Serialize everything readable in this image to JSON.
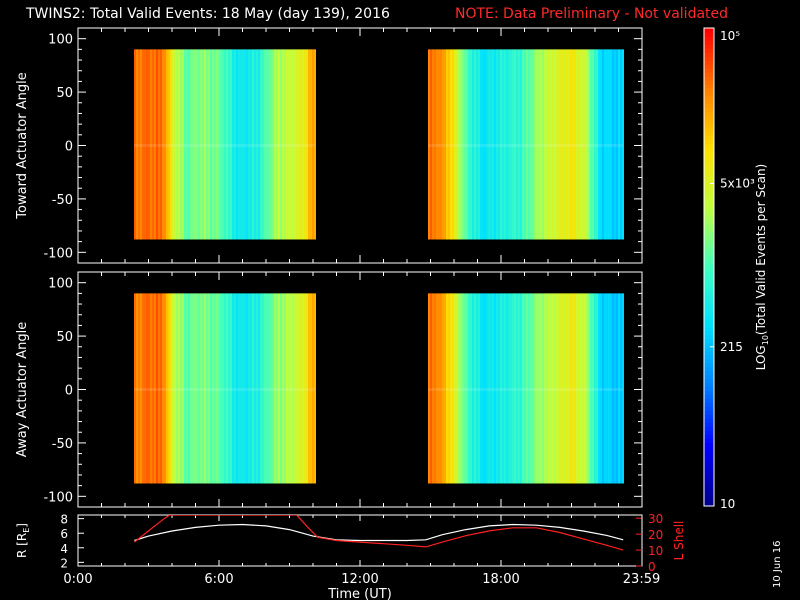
{
  "header": {
    "title": "TWINS2: Total Valid Events: 18 May (day 139), 2016",
    "note": "NOTE: Data Preliminary - Not validated"
  },
  "colors": {
    "background": "#000000",
    "axes": "#ffffff",
    "note": "#ff2a2a",
    "r_line": "#ffffff",
    "l_shell_line": "#ff2020"
  },
  "date_stamp": "10 Jun 16",
  "colorbar": {
    "label": "LOG10(Total Valid Events per Scan)",
    "label_prefix": "LOG",
    "label_sub": "10",
    "label_suffix": "(Total Valid Events per Scan)",
    "tick_labels": [
      "10",
      "215",
      "5x10³",
      "10⁵"
    ],
    "tick_values": [
      10,
      215,
      5000,
      100000
    ],
    "range": [
      10,
      100000
    ],
    "scale": "log",
    "colormap": [
      "#00008c",
      "#0000ff",
      "#0080ff",
      "#00e0ff",
      "#40ffc0",
      "#c0ff40",
      "#ffe000",
      "#ff8000",
      "#ff0000"
    ]
  },
  "chart_data": [
    {
      "type": "heatmap",
      "panel": "toward",
      "ylabel": "Toward Actuator Angle",
      "ylim": [
        -110,
        110
      ],
      "yticks": [
        -100,
        -50,
        0,
        50,
        100
      ],
      "xlim": [
        0,
        24
      ],
      "angle_range": [
        -88,
        90
      ],
      "data_intervals": [
        [
          2.4,
          10.1
        ],
        [
          14.9,
          23.2
        ]
      ],
      "profile_hours": [
        2.4,
        2.6,
        3.0,
        3.6,
        4.0,
        4.6,
        5.2,
        6.0,
        6.8,
        7.6,
        8.4,
        9.0,
        9.6,
        9.8,
        10.1,
        14.9,
        15.2,
        15.8,
        16.5,
        17.2,
        18.0,
        18.8,
        19.6,
        20.4,
        21.0,
        21.6,
        22.2,
        23.2
      ],
      "profile_log_counts": [
        4.5,
        4.55,
        4.6,
        4.55,
        3.7,
        3.1,
        3.3,
        3.15,
        2.6,
        2.75,
        3.4,
        3.55,
        3.8,
        4.2,
        4.3,
        4.5,
        4.55,
        4.1,
        3.0,
        2.55,
        2.75,
        2.9,
        3.4,
        3.7,
        3.9,
        3.5,
        2.5,
        2.4
      ]
    },
    {
      "type": "heatmap",
      "panel": "away",
      "ylabel": "Away Actuator Angle",
      "ylim": [
        -110,
        110
      ],
      "yticks": [
        -100,
        -50,
        0,
        50,
        100
      ],
      "xlim": [
        0,
        24
      ],
      "angle_range": [
        -88,
        90
      ],
      "data_intervals": [
        [
          2.4,
          10.1
        ],
        [
          14.9,
          23.2
        ]
      ],
      "profile_hours": [
        2.4,
        2.6,
        3.0,
        3.6,
        4.0,
        4.6,
        5.2,
        6.0,
        6.8,
        7.6,
        8.4,
        9.0,
        9.6,
        9.8,
        10.1,
        14.9,
        15.2,
        15.8,
        16.5,
        17.2,
        18.0,
        18.8,
        19.6,
        20.4,
        21.0,
        21.6,
        22.2,
        23.2
      ],
      "profile_log_counts": [
        4.45,
        4.5,
        4.6,
        4.55,
        3.6,
        3.1,
        3.25,
        3.1,
        2.6,
        2.75,
        3.3,
        3.45,
        3.75,
        4.15,
        4.25,
        4.5,
        4.55,
        4.0,
        3.0,
        2.55,
        2.7,
        2.9,
        3.35,
        3.6,
        3.85,
        3.45,
        2.45,
        2.35
      ]
    },
    {
      "type": "line",
      "panel": "ephemeris",
      "xlabel": "Time (UT)",
      "x_tick_labels": [
        "0:00",
        "6:00",
        "12:00",
        "18:00",
        "23:59"
      ],
      "x_tick_hours": [
        0,
        6,
        12,
        18,
        23.98
      ],
      "xlim": [
        0,
        24
      ],
      "y_left_label": "R [RE]",
      "y_left_label_prefix": "R [R",
      "y_left_label_sub": "E",
      "y_left_label_suffix": "]",
      "y_left_ticks": [
        2,
        4,
        6,
        8
      ],
      "y_left_lim": [
        1.5,
        8.5
      ],
      "y_right_label": "L Shell",
      "y_right_ticks": [
        0,
        10,
        20,
        30
      ],
      "y_right_lim": [
        0,
        32
      ],
      "series": [
        {
          "name": "R",
          "axis": "left",
          "x": [
            2.4,
            3.0,
            4.0,
            5.0,
            6.0,
            7.0,
            8.0,
            9.0,
            10.0,
            11.0,
            12.0,
            13.0,
            14.0,
            14.8,
            15.5,
            16.5,
            17.5,
            18.5,
            19.5,
            20.5,
            21.5,
            22.5,
            23.2
          ],
          "y": [
            5.0,
            5.6,
            6.3,
            6.8,
            7.1,
            7.2,
            7.0,
            6.5,
            5.6,
            5.1,
            5.0,
            5.0,
            5.0,
            5.1,
            5.8,
            6.5,
            7.0,
            7.2,
            7.1,
            6.8,
            6.3,
            5.7,
            5.1
          ]
        },
        {
          "name": "L Shell",
          "axis": "right",
          "x": [
            2.4,
            3.0,
            3.6,
            3.9,
            9.3,
            9.8,
            10.2,
            11.0,
            12.0,
            13.0,
            14.0,
            14.8,
            15.5,
            16.5,
            17.5,
            18.5,
            19.5,
            20.5,
            21.5,
            22.5,
            23.2
          ],
          "y": [
            15,
            22,
            29,
            32,
            32,
            24,
            18,
            16,
            15,
            14,
            13,
            12,
            15,
            19,
            22,
            24,
            24,
            21,
            17,
            13,
            10
          ]
        }
      ]
    }
  ]
}
